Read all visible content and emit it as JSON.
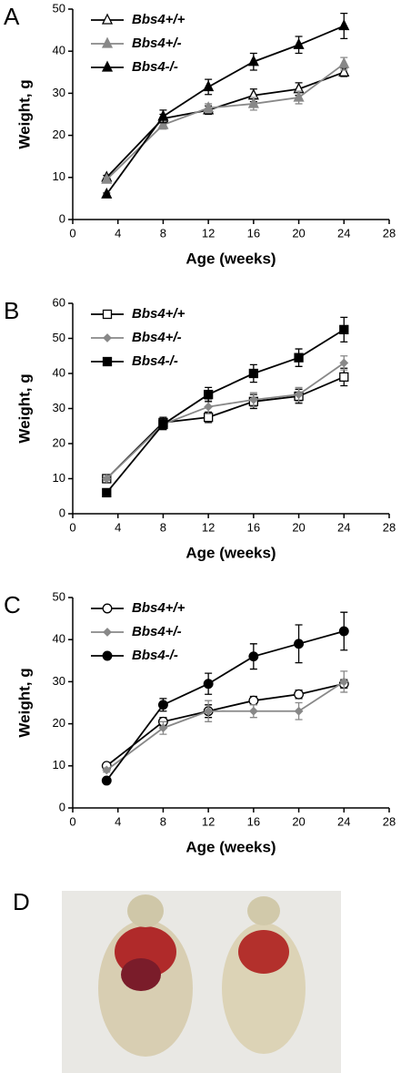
{
  "chart_data": [
    {
      "type": "line",
      "panel_label": "A",
      "xlabel": "Age (weeks)",
      "ylabel": "Weight, g",
      "x": [
        3,
        8,
        12,
        16,
        20,
        24
      ],
      "xlim": [
        0,
        28
      ],
      "xticks": [
        0,
        4,
        8,
        12,
        16,
        20,
        24,
        28
      ],
      "ylim": [
        0,
        50
      ],
      "yticks": [
        0,
        10,
        20,
        30,
        40,
        50
      ],
      "series": [
        {
          "name": "Bbs4+/+",
          "color": "#000000",
          "marker": "triangle",
          "marker_fill": "#ffffff",
          "values": [
            10,
            24,
            26,
            29.5,
            31,
            35
          ],
          "errors": [
            0.5,
            1,
            1,
            1.5,
            1.5,
            1
          ]
        },
        {
          "name": "Bbs4+/-",
          "color": "#888888",
          "marker": "triangle",
          "marker_fill": "#888888",
          "values": [
            9.5,
            22.5,
            26.5,
            27.5,
            29,
            37
          ],
          "errors": [
            0.5,
            1,
            1,
            1.5,
            1.5,
            1.5
          ]
        },
        {
          "name": "Bbs4-/-",
          "color": "#000000",
          "marker": "triangle",
          "marker_fill": "#000000",
          "values": [
            6,
            24.5,
            31.5,
            37.5,
            41.5,
            46
          ],
          "errors": [
            0.3,
            1.5,
            1.8,
            2,
            2,
            3
          ]
        }
      ]
    },
    {
      "type": "line",
      "panel_label": "B",
      "xlabel": "Age (weeks)",
      "ylabel": "Weight, g",
      "x": [
        3,
        8,
        12,
        16,
        20,
        24
      ],
      "xlim": [
        0,
        28
      ],
      "xticks": [
        0,
        4,
        8,
        12,
        16,
        20,
        24,
        28
      ],
      "ylim": [
        0,
        60
      ],
      "yticks": [
        0,
        10,
        20,
        30,
        40,
        50,
        60
      ],
      "series": [
        {
          "name": "Bbs4+/+",
          "color": "#000000",
          "marker": "square",
          "marker_fill": "#ffffff",
          "values": [
            10,
            26,
            27.5,
            32,
            33.5,
            39
          ],
          "errors": [
            0.5,
            1.5,
            1.5,
            2,
            2,
            2.5
          ]
        },
        {
          "name": "Bbs4+/-",
          "color": "#888888",
          "marker": "diamond",
          "marker_fill": "#888888",
          "values": [
            10,
            25.5,
            30.5,
            32.5,
            34,
            43
          ],
          "errors": [
            0.5,
            1.5,
            2,
            2,
            2,
            2
          ]
        },
        {
          "name": "Bbs4-/-",
          "color": "#000000",
          "marker": "square",
          "marker_fill": "#000000",
          "values": [
            6,
            25.5,
            34,
            40,
            44.5,
            52.5
          ],
          "errors": [
            0.5,
            1.5,
            2,
            2.5,
            2.5,
            3.5
          ]
        }
      ]
    },
    {
      "type": "line",
      "panel_label": "C",
      "xlabel": "Age (weeks)",
      "ylabel": "Weight, g",
      "x": [
        3,
        8,
        12,
        16,
        20,
        24
      ],
      "xlim": [
        0,
        28
      ],
      "xticks": [
        0,
        4,
        8,
        12,
        16,
        20,
        24,
        28
      ],
      "ylim": [
        0,
        50
      ],
      "yticks": [
        0,
        10,
        20,
        30,
        40,
        50
      ],
      "series": [
        {
          "name": "Bbs4+/+",
          "color": "#000000",
          "marker": "circle",
          "marker_fill": "#ffffff",
          "values": [
            10,
            20.5,
            23,
            25.5,
            27,
            29.5
          ],
          "errors": [
            0.5,
            1,
            1.5,
            1,
            1,
            1
          ]
        },
        {
          "name": "Bbs4+/-",
          "color": "#888888",
          "marker": "diamond",
          "marker_fill": "#888888",
          "values": [
            9,
            19,
            23,
            23,
            23,
            30
          ],
          "errors": [
            0.5,
            1.5,
            2.5,
            1.5,
            2,
            2.5
          ]
        },
        {
          "name": "Bbs4-/-",
          "color": "#000000",
          "marker": "circle",
          "marker_fill": "#000000",
          "values": [
            6.5,
            24.5,
            29.5,
            36,
            39,
            42
          ],
          "errors": [
            0.3,
            1.5,
            2.5,
            3,
            4.5,
            4.5
          ]
        }
      ]
    }
  ],
  "photo_panel": {
    "label": "D"
  }
}
